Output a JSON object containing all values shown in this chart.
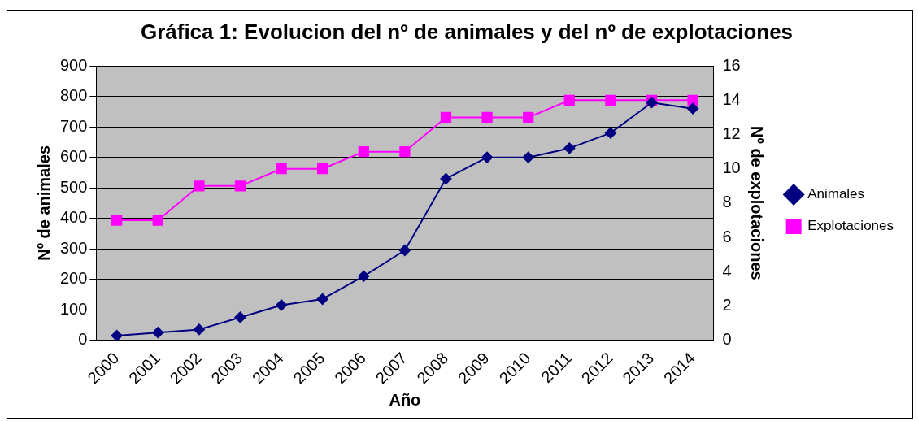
{
  "chart_data": {
    "type": "line",
    "title": "Gráfica 1: Evolucion del nº de animales y del nº de explotaciones",
    "xlabel": "Año",
    "ylabel": "Nº de animales",
    "y2label": "Nº de explotaciones",
    "categories": [
      "2000",
      "2001",
      "2002",
      "2003",
      "2004",
      "2005",
      "2006",
      "2007",
      "2008",
      "2009",
      "2010",
      "2011",
      "2012",
      "2013",
      "2014"
    ],
    "series": [
      {
        "name": "Animales",
        "color": "#000080",
        "marker": "diamond",
        "values": [
          15,
          25,
          35,
          75,
          115,
          135,
          210,
          295,
          530,
          600,
          600,
          630,
          680,
          780,
          760
        ]
      },
      {
        "name": "Explotaciones",
        "color": "#ff00ff",
        "marker": "square",
        "axis": "y2",
        "values": [
          7,
          7,
          9,
          9,
          10,
          10,
          11,
          11,
          13,
          13,
          13,
          14,
          14,
          14,
          14
        ]
      }
    ],
    "ylim": [
      0,
      900
    ],
    "yticks": [
      0,
      100,
      200,
      300,
      400,
      500,
      600,
      700,
      800,
      900
    ],
    "y2lim": [
      0,
      16
    ],
    "y2ticks": [
      0,
      2,
      4,
      6,
      8,
      10,
      12,
      14,
      16
    ],
    "grid": "y",
    "legend": "right"
  }
}
